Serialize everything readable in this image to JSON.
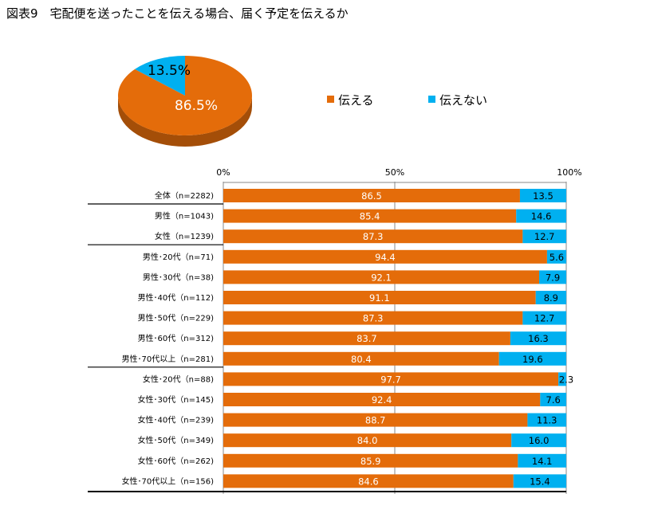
{
  "title": "図表9　宅配便を送ったことを伝える場合、届く予定を伝えるか",
  "chart_data": [
    {
      "type": "pie",
      "slices": [
        {
          "label": "伝える",
          "value": 86.5,
          "display": "86.5%",
          "color": "#E46C0A"
        },
        {
          "label": "伝えない",
          "value": 13.5,
          "display": "13.5%",
          "color": "#00B0F0"
        }
      ],
      "legend": [
        "伝える",
        "伝えない"
      ],
      "legend_position": "right"
    },
    {
      "type": "bar",
      "orientation": "horizontal-stacked-100",
      "xlim": [
        0,
        100
      ],
      "xticks": [
        "0%",
        "50%",
        "100%"
      ],
      "categories": [
        "全体（n=2282)",
        "男性（n=1043)",
        "女性（n=1239)",
        "男性･20代（n=71)",
        "男性･30代（n=38)",
        "男性･40代（n=112)",
        "男性･50代（n=229)",
        "男性･60代（n=312)",
        "男性･70代以上（n=281)",
        "女性･20代（n=88)",
        "女性･30代（n=145)",
        "女性･40代（n=239)",
        "女性･50代（n=349)",
        "女性･60代（n=262)",
        "女性･70代以上（n=156)"
      ],
      "series": [
        {
          "name": "伝える",
          "color": "#E46C0A",
          "values": [
            "86.5",
            "85.4",
            "87.3",
            "94.4",
            "92.1",
            "91.1",
            "87.3",
            "83.7",
            "80.4",
            "97.7",
            "92.4",
            "88.7",
            "84.0",
            "85.9",
            "84.6"
          ]
        },
        {
          "name": "伝えない",
          "color": "#00B0F0",
          "values": [
            "13.5",
            "14.6",
            "12.7",
            "5.6",
            "7.9",
            "8.9",
            "12.7",
            "16.3",
            "19.6",
            "2.3",
            "7.6",
            "11.3",
            "16.0",
            "14.1",
            "15.4"
          ]
        }
      ],
      "group_separators_after": [
        0,
        2,
        8
      ]
    }
  ]
}
